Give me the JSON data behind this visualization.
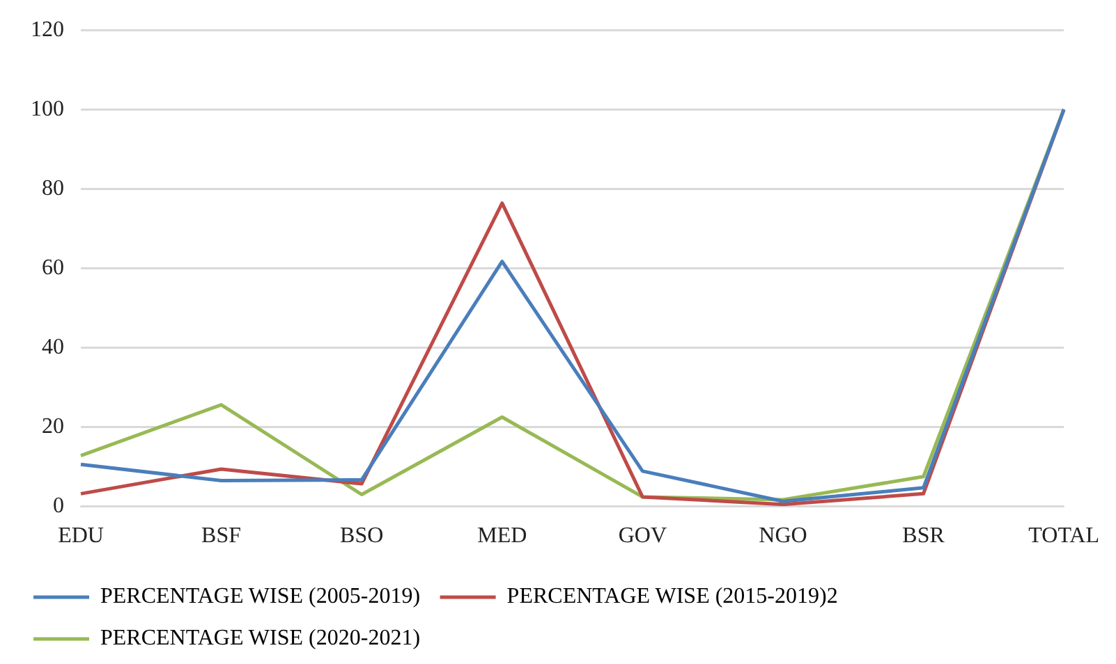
{
  "chart_data": {
    "type": "line",
    "categories": [
      "EDU",
      "BSF",
      "BSO",
      "MED",
      "GOV",
      "NGO",
      "BSR",
      "TOTAL"
    ],
    "series": [
      {
        "name": "PERCENTAGE WISE (2005-2019)",
        "color": "#4a7ebb",
        "values": [
          10.6,
          6.5,
          6.7,
          61.7,
          8.9,
          1.3,
          4.7,
          100
        ]
      },
      {
        "name": "PERCENTAGE WISE (2015-2019)2",
        "color": "#be4b48",
        "values": [
          3.2,
          9.4,
          5.7,
          76.4,
          2.4,
          0.5,
          3.2,
          100
        ]
      },
      {
        "name": "PERCENTAGE WISE (2020-2021)",
        "color": "#98b954",
        "values": [
          12.8,
          25.6,
          3.0,
          22.5,
          2.4,
          1.7,
          7.5,
          100
        ]
      }
    ],
    "ylim": [
      0,
      120
    ],
    "yticks": [
      0,
      20,
      40,
      60,
      80,
      100,
      120
    ],
    "grid": "y",
    "legend": "bottom",
    "marker": "none",
    "line_style": "solid"
  }
}
